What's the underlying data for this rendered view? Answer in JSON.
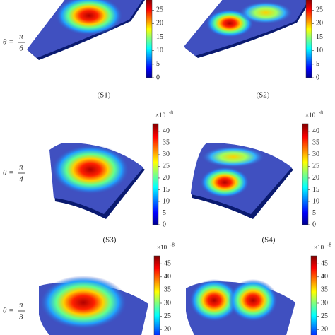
{
  "rows": [
    {
      "theta": {
        "lhs": "θ =",
        "num": "π",
        "den": "6"
      },
      "colorbar": {
        "lim": [
          0,
          29
        ],
        "ticks": [
          0,
          5,
          10,
          15,
          20,
          25
        ]
      },
      "panels": [
        {
          "label": "(S1)"
        },
        {
          "label": "(S2)"
        }
      ]
    },
    {
      "theta": {
        "lhs": "θ =",
        "num": "π",
        "den": "4"
      },
      "colorbar": {
        "exponent": "×10",
        "power": "-8",
        "lim": [
          0,
          43.3
        ],
        "ticks": [
          0,
          5,
          10,
          15,
          20,
          25,
          30,
          35,
          40
        ]
      },
      "panels": [
        {
          "label": "(S3)"
        },
        {
          "label": "(S4)"
        }
      ]
    },
    {
      "theta": {
        "lhs": "θ =",
        "num": "π",
        "den": "3"
      },
      "colorbar": {
        "exponent": "×10",
        "power": "-8",
        "lim": [
          12,
          48
        ],
        "ticks": [
          20,
          25,
          30,
          35,
          40,
          45
        ]
      },
      "panels": [
        {},
        {}
      ]
    }
  ]
}
